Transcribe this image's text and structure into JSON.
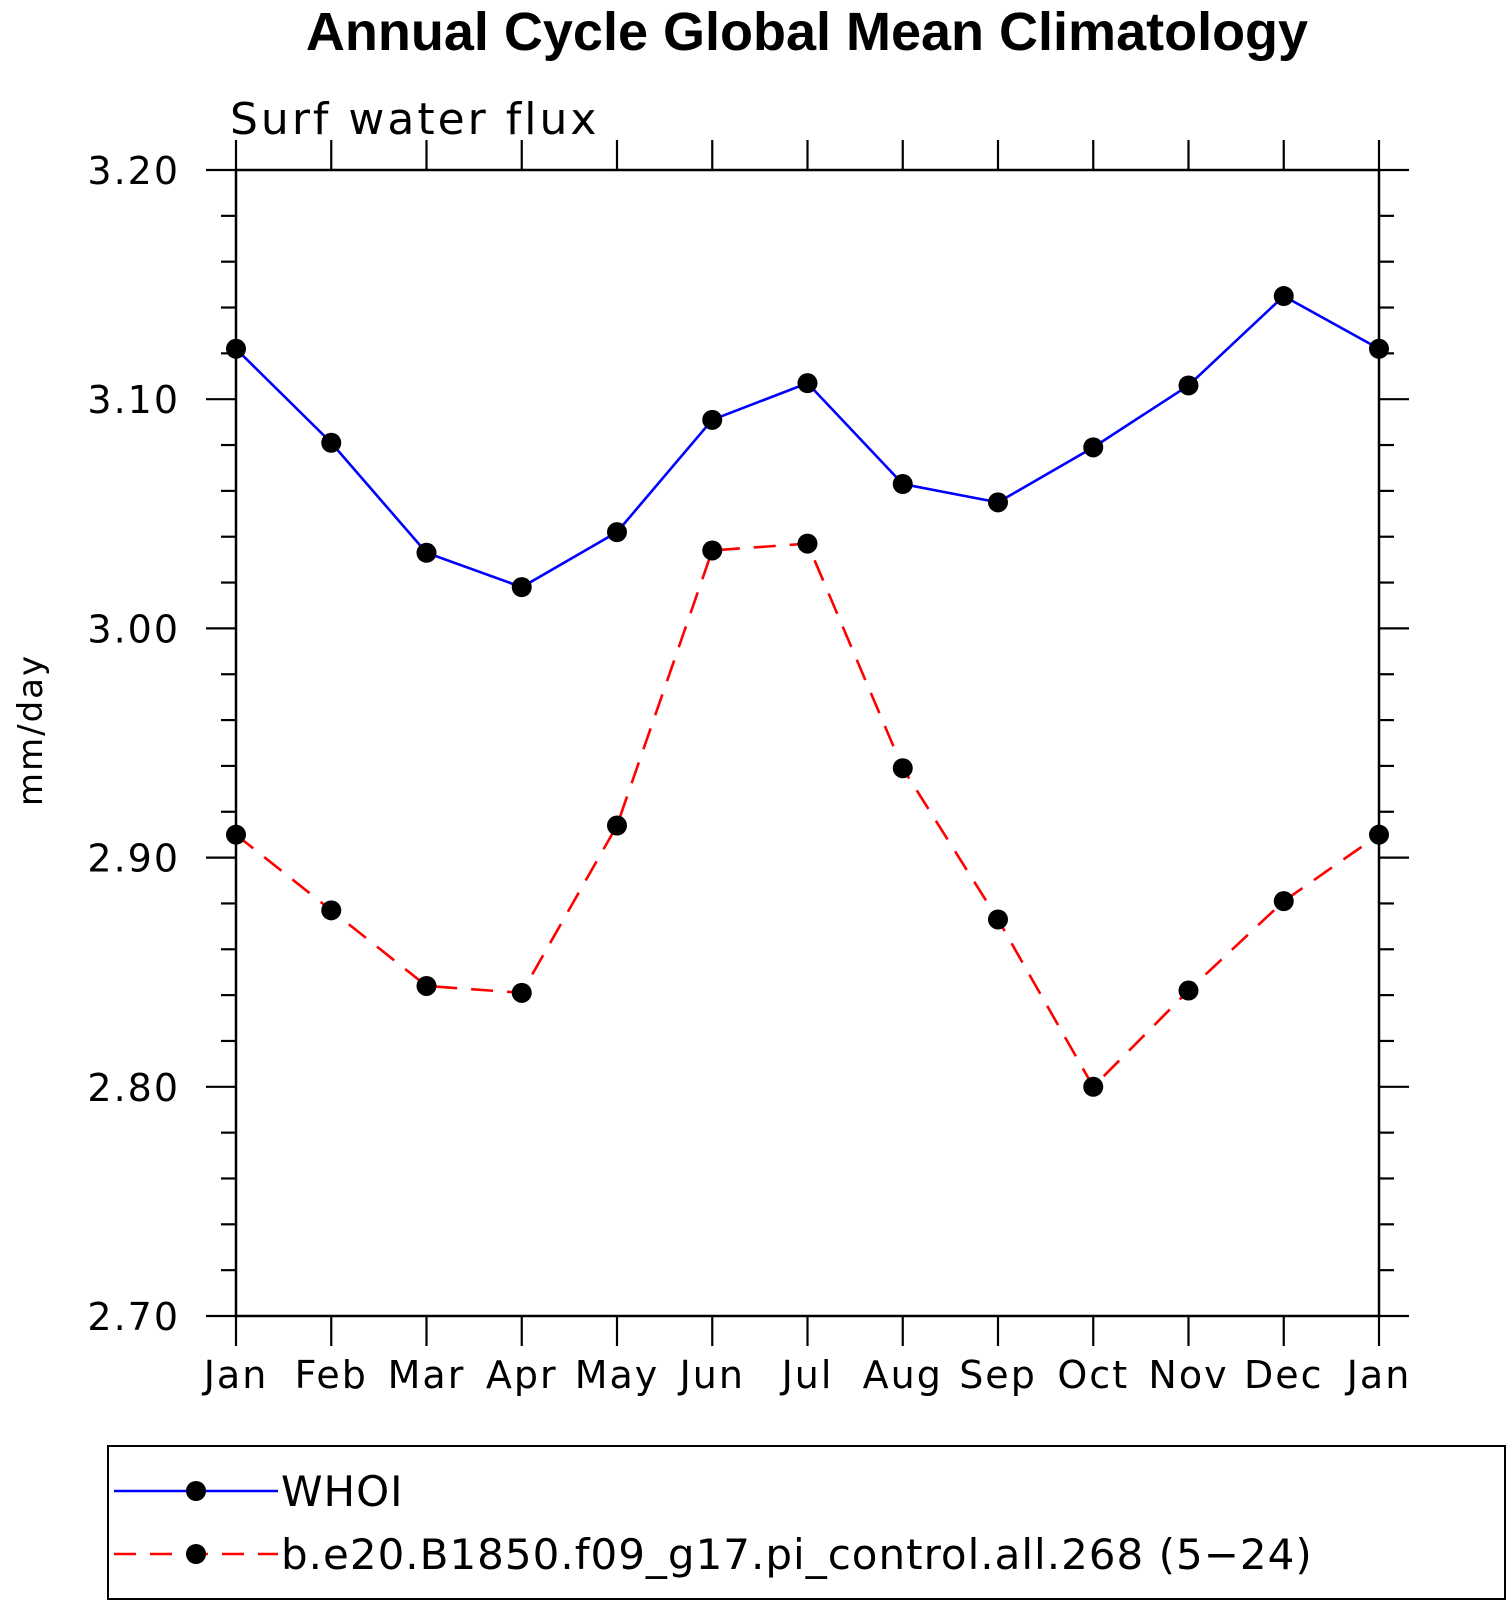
{
  "chart_data": {
    "type": "line",
    "title": "Annual Cycle Global Mean Climatology",
    "subtitle": "Surf water flux",
    "ylabel": "mm/day",
    "xlabel": "",
    "categories": [
      "Jan",
      "Feb",
      "Mar",
      "Apr",
      "May",
      "Jun",
      "Jul",
      "Aug",
      "Sep",
      "Oct",
      "Nov",
      "Dec",
      "Jan"
    ],
    "ylim": [
      2.7,
      3.2
    ],
    "yticks": [
      "3.20",
      "3.10",
      "3.00",
      "2.90",
      "2.80",
      "2.70"
    ],
    "ytick_values": [
      3.2,
      3.1,
      3.0,
      2.9,
      2.8,
      2.7
    ],
    "legend_position": "bottom",
    "series": [
      {
        "name": "WHOI",
        "color": "#0000ff",
        "line_style": "solid",
        "marker": "filled-circle",
        "values": [
          3.122,
          3.081,
          3.033,
          3.018,
          3.042,
          3.091,
          3.107,
          3.063,
          3.055,
          3.079,
          3.106,
          3.145,
          3.122
        ]
      },
      {
        "name": "b.e20.B1850.f09_g17.pi_control.all.268 (5−24)",
        "color": "#ff0000",
        "line_style": "dashed",
        "marker": "filled-circle",
        "values": [
          2.91,
          2.877,
          2.844,
          2.841,
          2.914,
          3.034,
          3.037,
          2.939,
          2.873,
          2.8,
          2.842,
          2.881,
          2.91
        ]
      }
    ]
  }
}
